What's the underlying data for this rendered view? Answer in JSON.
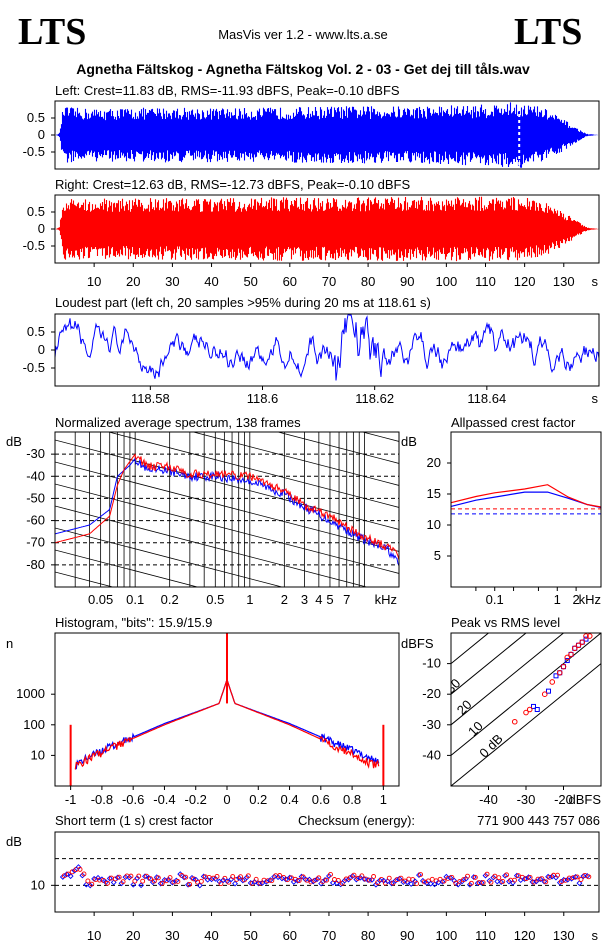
{
  "header": {
    "logo_left": "LTS",
    "logo_right": "LTS",
    "app_title": "MasVis ver 1.2 - www.lts.a.se",
    "track_title": "Agnetha Fältskog - Agnetha Fältskog Vol. 2 - 03 - Get dej till tåls.wav"
  },
  "colors": {
    "left": "#0000ff",
    "right": "#ff0000",
    "axis": "#000000"
  },
  "chart_data": [
    {
      "id": "left_waveform",
      "type": "area",
      "title": "Left: Crest=11.83 dB, RMS=-11.93 dBFS, Peak=-0.10 dBFS",
      "ylim": [
        -1,
        1
      ],
      "yticks": [
        "0.5",
        "0",
        "-0.5"
      ],
      "ytick_values": [
        0.5,
        0,
        -0.5
      ],
      "xlim": [
        0,
        139
      ],
      "envelope_points": [
        [
          0,
          0
        ],
        [
          1,
          0.05
        ],
        [
          2,
          0.85
        ],
        [
          5,
          0.8
        ],
        [
          10,
          0.78
        ],
        [
          20,
          0.8
        ],
        [
          30,
          0.82
        ],
        [
          40,
          0.8
        ],
        [
          50,
          0.8
        ],
        [
          60,
          0.82
        ],
        [
          70,
          0.85
        ],
        [
          80,
          0.85
        ],
        [
          90,
          0.85
        ],
        [
          100,
          0.88
        ],
        [
          110,
          0.9
        ],
        [
          118.6,
          0.99
        ],
        [
          125,
          0.8
        ],
        [
          130,
          0.45
        ],
        [
          134,
          0.15
        ],
        [
          136,
          0.03
        ],
        [
          139,
          0
        ]
      ],
      "marker_time_s": 118.61,
      "color": "#0000ff"
    },
    {
      "id": "right_waveform",
      "type": "area",
      "title": "Right: Crest=12.63 dB, RMS=-12.73 dBFS, Peak=-0.10 dBFS",
      "ylim": [
        -1,
        1
      ],
      "yticks": [
        "0.5",
        "0",
        "-0.5"
      ],
      "ytick_values": [
        0.5,
        0,
        -0.5
      ],
      "xlim": [
        0,
        139
      ],
      "xticks": [
        "10",
        "20",
        "30",
        "40",
        "50",
        "60",
        "70",
        "80",
        "90",
        "100",
        "110",
        "120",
        "130"
      ],
      "xtick_values": [
        10,
        20,
        30,
        40,
        50,
        60,
        70,
        80,
        90,
        100,
        110,
        120,
        130
      ],
      "xunit": "s",
      "envelope_points": [
        [
          0,
          0
        ],
        [
          1,
          0.05
        ],
        [
          2,
          0.9
        ],
        [
          10,
          0.92
        ],
        [
          20,
          0.9
        ],
        [
          30,
          0.92
        ],
        [
          40,
          0.9
        ],
        [
          50,
          0.92
        ],
        [
          60,
          0.94
        ],
        [
          70,
          0.92
        ],
        [
          80,
          0.94
        ],
        [
          90,
          0.95
        ],
        [
          100,
          0.95
        ],
        [
          110,
          0.96
        ],
        [
          120,
          0.95
        ],
        [
          125,
          0.8
        ],
        [
          130,
          0.5
        ],
        [
          134,
          0.18
        ],
        [
          136,
          0.04
        ],
        [
          139,
          0
        ]
      ],
      "color": "#ff0000"
    },
    {
      "id": "loudest_part",
      "type": "line",
      "title": "Loudest part (left  ch, 20 samples >95% during 20 ms at 118.61 s)",
      "ylim": [
        -1,
        1
      ],
      "yticks": [
        "0.5",
        "0",
        "-0.5"
      ],
      "ytick_values": [
        0.5,
        0,
        -0.5
      ],
      "xlim": [
        118.563,
        118.66
      ],
      "xticks": [
        "118.58",
        "118.6",
        "118.62",
        "118.64"
      ],
      "xtick_values": [
        118.58,
        118.6,
        118.62,
        118.64
      ],
      "xunit": "s",
      "color": "#0000ff"
    },
    {
      "id": "spectrum",
      "type": "line",
      "title": "Normalized average spectrum, 138 frames",
      "ylabel": "dB",
      "xunit": "kHz",
      "xscale": "log",
      "xlim": [
        0.02,
        20
      ],
      "ylim": [
        -90,
        -20
      ],
      "yticks": [
        "-30",
        "-40",
        "-50",
        "-60",
        "-70",
        "-80"
      ],
      "ytick_values": [
        -30,
        -40,
        -50,
        -60,
        -70,
        -80
      ],
      "xticks": [
        "0.05",
        "0.1",
        "0.2",
        "0.5",
        "1",
        "2",
        "3",
        "4",
        "5",
        "7"
      ],
      "xtick_values": [
        0.05,
        0.1,
        0.2,
        0.5,
        1,
        2,
        3,
        4,
        5,
        7
      ],
      "series": [
        {
          "color": "#0000ff",
          "points": [
            [
              0.02,
              -66
            ],
            [
              0.04,
              -62
            ],
            [
              0.06,
              -55
            ],
            [
              0.07,
              -40
            ],
            [
              0.09,
              -35
            ],
            [
              0.1,
              -32
            ],
            [
              0.13,
              -38
            ],
            [
              0.18,
              -37
            ],
            [
              0.3,
              -40
            ],
            [
              0.5,
              -40
            ],
            [
              1,
              -42
            ],
            [
              2,
              -48
            ],
            [
              3,
              -54
            ],
            [
              5,
              -60
            ],
            [
              8,
              -66
            ],
            [
              12,
              -71
            ],
            [
              16,
              -73
            ],
            [
              20,
              -80
            ]
          ]
        },
        {
          "color": "#ff0000",
          "points": [
            [
              0.02,
              -70
            ],
            [
              0.04,
              -66
            ],
            [
              0.06,
              -58
            ],
            [
              0.07,
              -44
            ],
            [
              0.08,
              -37
            ],
            [
              0.1,
              -30
            ],
            [
              0.13,
              -36
            ],
            [
              0.18,
              -35
            ],
            [
              0.3,
              -39
            ],
            [
              0.5,
              -39
            ],
            [
              1,
              -40
            ],
            [
              2,
              -47
            ],
            [
              3,
              -53
            ],
            [
              5,
              -58
            ],
            [
              8,
              -65
            ],
            [
              12,
              -69
            ],
            [
              16,
              -72
            ],
            [
              20,
              -76
            ]
          ]
        }
      ]
    },
    {
      "id": "allpassed_crest",
      "type": "line",
      "title": "Allpassed crest factor",
      "ylabel": "dB",
      "xunit": "kHz",
      "xscale": "log",
      "xlim": [
        0.02,
        5
      ],
      "ylim": [
        0,
        25
      ],
      "yticks": [
        "20",
        "15",
        "10",
        "5"
      ],
      "ytick_values": [
        20,
        15,
        10,
        5
      ],
      "xticks": [
        "0.1",
        "1",
        "2"
      ],
      "xtick_values": [
        0.1,
        1,
        2
      ],
      "series": [
        {
          "color": "#0000ff",
          "points": [
            [
              0.02,
              13
            ],
            [
              0.05,
              14
            ],
            [
              0.1,
              14.5
            ],
            [
              0.3,
              15.3
            ],
            [
              0.7,
              15.3
            ],
            [
              1.5,
              14.3
            ],
            [
              3,
              13.3
            ],
            [
              5,
              12.8
            ]
          ]
        },
        {
          "color": "#ff0000",
          "points": [
            [
              0.02,
              13.6
            ],
            [
              0.05,
              14.6
            ],
            [
              0.1,
              15.2
            ],
            [
              0.3,
              15.8
            ],
            [
              0.7,
              16.5
            ],
            [
              1.5,
              14.5
            ],
            [
              3,
              13.3
            ],
            [
              5,
              12.9
            ]
          ]
        }
      ],
      "reference_lines": [
        {
          "color": "#0000ff",
          "value": 11.8
        },
        {
          "color": "#ff0000",
          "value": 12.6
        }
      ]
    },
    {
      "id": "histogram",
      "type": "line",
      "title": "Histogram, \"bits\": 15.9/15.9",
      "ylabel": "n",
      "yscale": "log",
      "ylim": [
        1,
        100000
      ],
      "yticks": [
        "1000",
        "100",
        "10"
      ],
      "ytick_values": [
        1000,
        100,
        10
      ],
      "xlim": [
        -1.1,
        1.1
      ],
      "xticks": [
        "-1",
        "-0.8",
        "-0.6",
        "-0.4",
        "-0.2",
        "0",
        "0.2",
        "0.4",
        "0.6",
        "0.8",
        "1"
      ],
      "xtick_values": [
        -1,
        -0.8,
        -0.6,
        -0.4,
        -0.2,
        0,
        0.2,
        0.4,
        0.6,
        0.8,
        1
      ],
      "series": [
        {
          "color": "#0000ff",
          "points": [
            [
              -0.97,
              5
            ],
            [
              -0.9,
              8
            ],
            [
              -0.8,
              15
            ],
            [
              -0.6,
              40
            ],
            [
              -0.4,
              110
            ],
            [
              -0.2,
              260
            ],
            [
              -0.05,
              500
            ],
            [
              0,
              3000
            ],
            [
              0.05,
              500
            ],
            [
              0.2,
              260
            ],
            [
              0.4,
              110
            ],
            [
              0.6,
              40
            ],
            [
              0.8,
              15
            ],
            [
              0.9,
              9
            ],
            [
              0.97,
              6
            ]
          ]
        },
        {
          "color": "#ff0000",
          "points": [
            [
              -0.97,
              5
            ],
            [
              -0.9,
              7
            ],
            [
              -0.8,
              13
            ],
            [
              -0.6,
              36
            ],
            [
              -0.4,
              100
            ],
            [
              -0.2,
              250
            ],
            [
              -0.05,
              500
            ],
            [
              0,
              3000
            ],
            [
              0.05,
              500
            ],
            [
              0.2,
              250
            ],
            [
              0.4,
              100
            ],
            [
              0.6,
              34
            ],
            [
              0.8,
              12
            ],
            [
              0.9,
              6
            ],
            [
              0.97,
              5
            ]
          ]
        }
      ],
      "edge_spikes": [
        [
          -1,
          100
        ],
        [
          1,
          100
        ]
      ]
    },
    {
      "id": "peak_vs_rms",
      "type": "scatter",
      "title": "Peak vs RMS level",
      "ylabel": "dBFS",
      "xunit": "dBFS",
      "xlim": [
        -50,
        -10
      ],
      "ylim": [
        -50,
        0
      ],
      "yticks": [
        "-10",
        "-20",
        "-30",
        "-40"
      ],
      "ytick_values": [
        -10,
        -20,
        -30,
        -40
      ],
      "xticks": [
        "-40",
        "-30",
        "-20"
      ],
      "xtick_values": [
        -40,
        -30,
        -20
      ],
      "diagonal_labels": [
        "0 dB",
        "10",
        "20",
        "30",
        "40"
      ],
      "diagonal_offsets": [
        0,
        10,
        20,
        30,
        40
      ],
      "series": [
        {
          "color": "#0000ff",
          "points": [
            [
              -28,
              -24
            ],
            [
              -27,
              -25
            ],
            [
              -24,
              -19
            ],
            [
              -22,
              -14
            ],
            [
              -21,
              -13
            ],
            [
              -20,
              -11
            ],
            [
              -19,
              -9
            ],
            [
              -18,
              -7
            ],
            [
              -17,
              -5
            ],
            [
              -16,
              -4
            ],
            [
              -15,
              -3
            ],
            [
              -14,
              -2
            ]
          ]
        },
        {
          "color": "#ff0000",
          "points": [
            [
              -33,
              -29
            ],
            [
              -30,
              -26
            ],
            [
              -29,
              -25
            ],
            [
              -25,
              -20
            ],
            [
              -23,
              -16
            ],
            [
              -21,
              -13
            ],
            [
              -20,
              -11
            ],
            [
              -19,
              -8
            ],
            [
              -18,
              -7
            ],
            [
              -17,
              -5
            ],
            [
              -16,
              -4
            ],
            [
              -15,
              -3
            ],
            [
              -14,
              -1
            ],
            [
              -13,
              -1
            ]
          ]
        }
      ]
    },
    {
      "id": "short_term_crest",
      "type": "scatter",
      "title": "Short term (1 s) crest factor",
      "checksum_label": "Checksum (energy):",
      "checksum_value": "771 900 443 757 086",
      "ylabel": "dB",
      "ylim": [
        0,
        30
      ],
      "yticks": [
        "10"
      ],
      "ytick_values": [
        10
      ],
      "ref_lines": [
        10,
        20
      ],
      "xlim": [
        0,
        139
      ],
      "xticks": [
        "10",
        "20",
        "30",
        "40",
        "50",
        "60",
        "70",
        "80",
        "90",
        "100",
        "110",
        "120",
        "130"
      ],
      "xtick_values": [
        10,
        20,
        30,
        40,
        50,
        60,
        70,
        80,
        90,
        100,
        110,
        120,
        130
      ],
      "xunit": "s"
    }
  ]
}
